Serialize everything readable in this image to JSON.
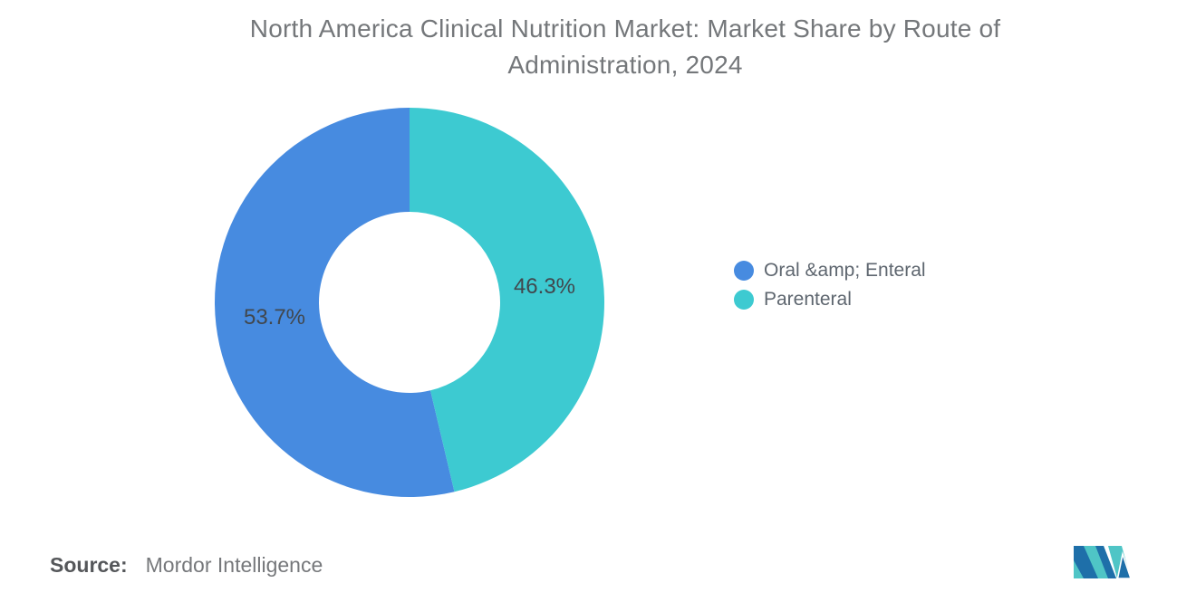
{
  "header": {
    "title_line1": "North America Clinical Nutrition Market: Market Share by Route of",
    "title_line2": "Administration, 2024"
  },
  "chart_data": {
    "type": "pie",
    "subtype": "donut",
    "title": "North America Clinical Nutrition Market: Market Share by Route of Administration, 2024",
    "segments": [
      {
        "label": "Oral &amp; Enteral",
        "value": 53.7,
        "display": "53.7%",
        "color": "#478be0"
      },
      {
        "label": "Parenteral",
        "value": 46.3,
        "display": "46.3%",
        "color": "#3dcad1"
      }
    ],
    "start_angle_deg": 0,
    "direction": "counterclockwise",
    "inner_radius_ratio": 0.465,
    "legend_position": "right",
    "data_label_color": "#41474d"
  },
  "footer": {
    "source_label": "Source:",
    "source_value": "Mordor Intelligence"
  },
  "logo": {
    "name": "Mordor Intelligence logo",
    "teal": "#4fc5c6",
    "blue": "#1e6fa9"
  }
}
